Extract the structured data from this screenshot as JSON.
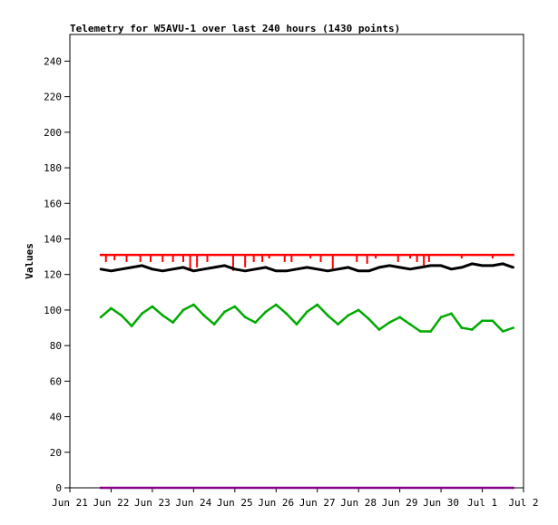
{
  "chart_data": {
    "type": "line",
    "title": "Telemetry for W5AVU-1 over last 240 hours (1430 points)",
    "xlabel": "",
    "ylabel": "Values",
    "ylim": [
      0,
      255
    ],
    "yticks": [
      0,
      20,
      40,
      60,
      80,
      100,
      120,
      140,
      160,
      180,
      200,
      220,
      240
    ],
    "xlim": [
      "2021-06-21",
      "2021-07-02"
    ],
    "xticks": [
      {
        "date": "2021-06-21",
        "label": "Jun 21"
      },
      {
        "date": "2021-06-22",
        "label": "Jun 22"
      },
      {
        "date": "2021-06-23",
        "label": "Jun 23"
      },
      {
        "date": "2021-06-24",
        "label": "Jun 24"
      },
      {
        "date": "2021-06-25",
        "label": "Jun 25"
      },
      {
        "date": "2021-06-26",
        "label": "Jun 26"
      },
      {
        "date": "2021-06-27",
        "label": "Jun 27"
      },
      {
        "date": "2021-06-28",
        "label": "Jun 28"
      },
      {
        "date": "2021-06-29",
        "label": "Jun 29"
      },
      {
        "date": "2021-06-30",
        "label": "Jun 30"
      },
      {
        "date": "2021-07-01",
        "label": "Jul 1"
      },
      {
        "date": "2021-07-02",
        "label": "Jul 2"
      }
    ],
    "grid": false,
    "legend": "none",
    "series": [
      {
        "color": "#ff0000",
        "x": [
          "2021-06-21T18:00",
          "2021-07-01T18:00"
        ],
        "values": [
          131,
          131
        ],
        "dips": [
          {
            "x": "2021-06-21T21:00",
            "y": 127
          },
          {
            "x": "2021-06-22T02:00",
            "y": 128
          },
          {
            "x": "2021-06-22T09:00",
            "y": 127
          },
          {
            "x": "2021-06-22T17:00",
            "y": 127
          },
          {
            "x": "2021-06-22T23:00",
            "y": 127
          },
          {
            "x": "2021-06-23T06:00",
            "y": 127
          },
          {
            "x": "2021-06-23T12:00",
            "y": 127
          },
          {
            "x": "2021-06-23T18:00",
            "y": 127
          },
          {
            "x": "2021-06-23T22:00",
            "y": 122
          },
          {
            "x": "2021-06-24T02:00",
            "y": 124
          },
          {
            "x": "2021-06-24T08:00",
            "y": 127
          },
          {
            "x": "2021-06-24T23:00",
            "y": 122
          },
          {
            "x": "2021-06-25T06:00",
            "y": 124
          },
          {
            "x": "2021-06-25T11:00",
            "y": 127
          },
          {
            "x": "2021-06-25T16:00",
            "y": 127
          },
          {
            "x": "2021-06-25T20:00",
            "y": 129
          },
          {
            "x": "2021-06-26T05:00",
            "y": 127
          },
          {
            "x": "2021-06-26T09:00",
            "y": 127
          },
          {
            "x": "2021-06-26T20:00",
            "y": 129
          },
          {
            "x": "2021-06-27T02:00",
            "y": 127
          },
          {
            "x": "2021-06-27T09:00",
            "y": 123
          },
          {
            "x": "2021-06-27T23:00",
            "y": 127
          },
          {
            "x": "2021-06-28T05:00",
            "y": 126
          },
          {
            "x": "2021-06-28T10:00",
            "y": 129
          },
          {
            "x": "2021-06-28T23:00",
            "y": 127
          },
          {
            "x": "2021-06-29T06:00",
            "y": 129
          },
          {
            "x": "2021-06-29T10:00",
            "y": 127
          },
          {
            "x": "2021-06-29T14:00",
            "y": 125
          },
          {
            "x": "2021-06-29T17:00",
            "y": 127
          },
          {
            "x": "2021-06-30T12:00",
            "y": 129
          },
          {
            "x": "2021-07-01T06:00",
            "y": 129
          }
        ]
      },
      {
        "color": "#000000",
        "x": [
          "2021-06-21T18:00",
          "2021-06-22T00:00",
          "2021-06-22T06:00",
          "2021-06-22T12:00",
          "2021-06-22T18:00",
          "2021-06-23T00:00",
          "2021-06-23T06:00",
          "2021-06-23T12:00",
          "2021-06-23T18:00",
          "2021-06-24T00:00",
          "2021-06-24T06:00",
          "2021-06-24T12:00",
          "2021-06-24T18:00",
          "2021-06-25T00:00",
          "2021-06-25T06:00",
          "2021-06-25T12:00",
          "2021-06-25T18:00",
          "2021-06-26T00:00",
          "2021-06-26T06:00",
          "2021-06-26T12:00",
          "2021-06-26T18:00",
          "2021-06-27T00:00",
          "2021-06-27T06:00",
          "2021-06-27T12:00",
          "2021-06-27T18:00",
          "2021-06-28T00:00",
          "2021-06-28T06:00",
          "2021-06-28T12:00",
          "2021-06-28T18:00",
          "2021-06-29T00:00",
          "2021-06-29T06:00",
          "2021-06-29T12:00",
          "2021-06-29T18:00",
          "2021-06-30T00:00",
          "2021-06-30T06:00",
          "2021-06-30T12:00",
          "2021-06-30T18:00",
          "2021-07-01T00:00",
          "2021-07-01T06:00",
          "2021-07-01T12:00",
          "2021-07-01T18:00"
        ],
        "values": [
          123,
          122,
          123,
          124,
          125,
          123,
          122,
          123,
          124,
          122,
          123,
          124,
          125,
          123,
          122,
          123,
          124,
          122,
          122,
          123,
          124,
          123,
          122,
          123,
          124,
          122,
          122,
          124,
          125,
          124,
          123,
          124,
          125,
          125,
          123,
          124,
          126,
          125,
          125,
          126,
          124
        ]
      },
      {
        "color": "#00aa00",
        "x": [
          "2021-06-21T18:00",
          "2021-06-22T00:00",
          "2021-06-22T06:00",
          "2021-06-22T12:00",
          "2021-06-22T18:00",
          "2021-06-23T00:00",
          "2021-06-23T06:00",
          "2021-06-23T12:00",
          "2021-06-23T18:00",
          "2021-06-24T00:00",
          "2021-06-24T06:00",
          "2021-06-24T12:00",
          "2021-06-24T18:00",
          "2021-06-25T00:00",
          "2021-06-25T06:00",
          "2021-06-25T12:00",
          "2021-06-25T18:00",
          "2021-06-26T00:00",
          "2021-06-26T06:00",
          "2021-06-26T12:00",
          "2021-06-26T18:00",
          "2021-06-27T00:00",
          "2021-06-27T06:00",
          "2021-06-27T12:00",
          "2021-06-27T18:00",
          "2021-06-28T00:00",
          "2021-06-28T06:00",
          "2021-06-28T12:00",
          "2021-06-28T18:00",
          "2021-06-29T00:00",
          "2021-06-29T06:00",
          "2021-06-29T12:00",
          "2021-06-29T18:00",
          "2021-06-30T00:00",
          "2021-06-30T06:00",
          "2021-06-30T12:00",
          "2021-06-30T18:00",
          "2021-07-01T00:00",
          "2021-07-01T06:00",
          "2021-07-01T12:00",
          "2021-07-01T18:00"
        ],
        "values": [
          96,
          101,
          97,
          91,
          98,
          102,
          97,
          93,
          100,
          103,
          97,
          92,
          99,
          102,
          96,
          93,
          99,
          103,
          98,
          92,
          99,
          103,
          97,
          92,
          97,
          100,
          95,
          89,
          93,
          96,
          92,
          88,
          88,
          96,
          98,
          90,
          89,
          94,
          94,
          88,
          90
        ]
      },
      {
        "color": "#880088",
        "x": [
          "2021-06-21T18:00",
          "2021-07-01T18:00"
        ],
        "values": [
          0,
          0
        ]
      }
    ]
  }
}
